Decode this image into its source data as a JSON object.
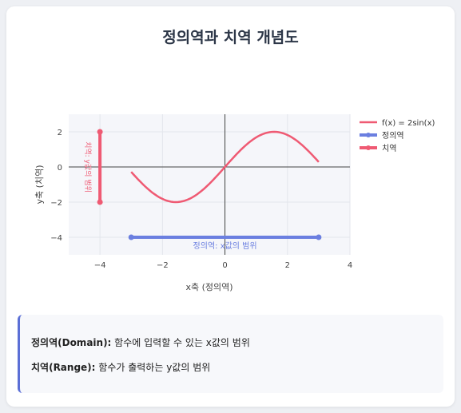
{
  "title": "정의역과 치역 개념도",
  "info": {
    "domain_term": "정의역(Domain):",
    "domain_text": " 함수에 입력할 수 있는 x값의 범위",
    "range_term": "치역(Range):",
    "range_text": " 함수가 출력하는 y값의 범위"
  },
  "chart_data": {
    "type": "line",
    "xlabel": "x축 (정의역)",
    "ylabel": "y축 (치역)",
    "xlim": [
      -5,
      4
    ],
    "ylim": [
      -5,
      3
    ],
    "xticks": [
      -4,
      -2,
      0,
      2,
      4
    ],
    "yticks": [
      -4,
      -2,
      0,
      2
    ],
    "xtick_labels": [
      "−4",
      "−2",
      "0",
      "2",
      "4"
    ],
    "ytick_labels": [
      "−4",
      "−2",
      "0",
      "2"
    ],
    "legend_position": "right",
    "grid": true,
    "series": [
      {
        "name": "f(x) = 2sin(x)",
        "function": "2sin(x)",
        "x_range": [
          -3,
          3
        ],
        "color": "#ef5a73"
      },
      {
        "name": "정의역",
        "x": [
          -3,
          3
        ],
        "y": [
          -4,
          -4
        ],
        "color": "#6b7fe0"
      },
      {
        "name": "치역",
        "x": [
          -4,
          -4
        ],
        "y": [
          -2,
          2
        ],
        "color": "#ef5a73"
      }
    ],
    "annotations": [
      {
        "text": "정의역: x값의 범위",
        "x": 0,
        "y": -4,
        "color": "#6b7fe0"
      },
      {
        "text": "치역: y값의 범위",
        "x": -4,
        "y": 0,
        "color": "#ef5a73",
        "orientation": "vertical"
      }
    ]
  }
}
